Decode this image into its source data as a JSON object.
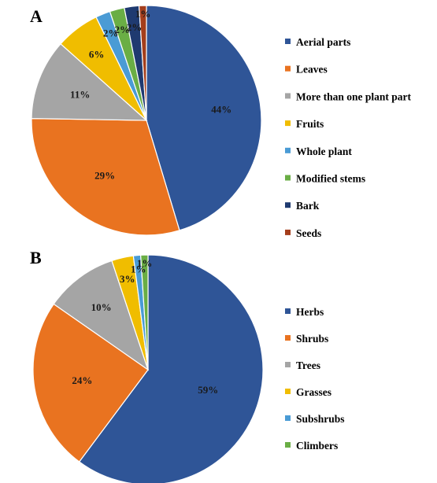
{
  "chart_data": [
    {
      "type": "pie",
      "panel": "A",
      "title": "",
      "categories": [
        "Aerial parts",
        "Leaves",
        "More than one plant part",
        "Fruits",
        "Whole plant",
        "Modified stems",
        "Bark",
        "Seeds"
      ],
      "values": [
        44,
        29,
        11,
        6,
        2,
        2,
        2,
        1
      ],
      "data_labels": [
        "44%",
        "29%",
        "11%",
        "6%",
        "2%",
        "2%",
        "2%",
        "1%"
      ],
      "colors": [
        "#2F5597",
        "#E97320",
        "#A5A5A5",
        "#F0BD00",
        "#4A9BD5",
        "#6AAE45",
        "#1F3A70",
        "#A43E1C"
      ],
      "legend_position": "right"
    },
    {
      "type": "pie",
      "panel": "B",
      "title": "",
      "categories": [
        "Herbs",
        "Shrubs",
        "Trees",
        "Grasses",
        "Subshrubs",
        "Climbers"
      ],
      "values": [
        59,
        24,
        10,
        3,
        1,
        1
      ],
      "data_labels": [
        "59%",
        "24%",
        "10%",
        "3%",
        "1%",
        "1%"
      ],
      "colors": [
        "#2F5597",
        "#E97320",
        "#A5A5A5",
        "#F0BD00",
        "#4A9BD5",
        "#6AAE45"
      ],
      "legend_position": "right"
    }
  ]
}
